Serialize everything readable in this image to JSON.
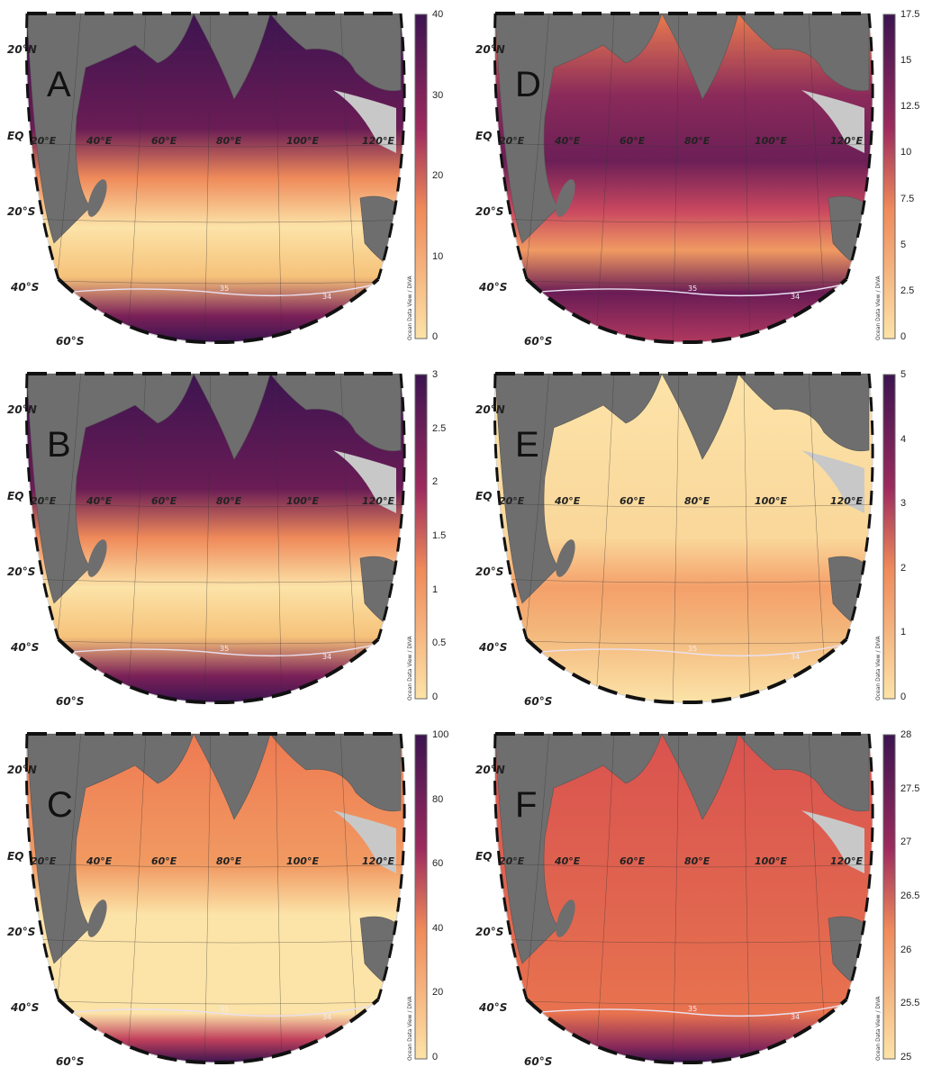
{
  "figure": {
    "credit": "Ocean Data View / DIVA",
    "lat_labels": [
      "20°N",
      "EQ",
      "20°S",
      "40°S",
      "60°S"
    ],
    "lon_labels": [
      "20°E",
      "40°E",
      "60°E",
      "80°E",
      "100°E",
      "120°E"
    ],
    "contour_labels": [
      "35",
      "34"
    ],
    "colors": {
      "land": "#6e6e6e",
      "shelf": "#c8c8c8",
      "low": "#fce3a8",
      "mid": "#ef8a5a",
      "high": "#3c1450"
    }
  },
  "panels": [
    {
      "letter": "A",
      "ticks": [
        "40",
        "30",
        "20",
        "10",
        "0"
      ],
      "pattern": "north-south-high"
    },
    {
      "letter": "D",
      "ticks": [
        "17.5",
        "15",
        "12.5",
        "10",
        "7.5",
        "5",
        "2.5",
        "0"
      ],
      "pattern": "banded"
    },
    {
      "letter": "B",
      "ticks": [
        "3",
        "2.5",
        "2",
        "1.5",
        "1",
        "0.5",
        "0"
      ],
      "pattern": "north-south-high"
    },
    {
      "letter": "E",
      "ticks": [
        "5",
        "4",
        "3",
        "2",
        "1",
        "0"
      ],
      "pattern": "southeast-high"
    },
    {
      "letter": "C",
      "ticks": [
        "100",
        "80",
        "60",
        "40",
        "20",
        "0"
      ],
      "pattern": "south-high"
    },
    {
      "letter": "F",
      "ticks": [
        "28",
        "27.5",
        "27",
        "26.5",
        "26",
        "25.5",
        "25"
      ],
      "pattern": "uniform-mid"
    }
  ]
}
